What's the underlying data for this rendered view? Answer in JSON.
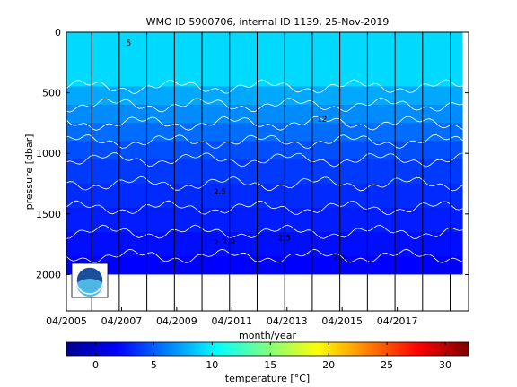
{
  "chart_data": {
    "type": "heatmap",
    "title": "WMO ID 5900706, internal ID 1139, 25-Nov-2019",
    "xlabel": "month/year",
    "ylabel": "pressure [dbar]",
    "x_ticks": [
      "04/2005",
      "04/2007",
      "04/2009",
      "04/2011",
      "04/2013",
      "04/2015",
      "04/2017"
    ],
    "y_ticks": [
      "0",
      "500",
      "1000",
      "1500",
      "2000"
    ],
    "y_tick_values": [
      0,
      500,
      1000,
      1500,
      2000
    ],
    "xlim": [
      "2005-04",
      "2019-11"
    ],
    "ylim_dbar": [
      0,
      2300
    ],
    "y_reversed": true,
    "colorbar": {
      "label": "temperature [°C]",
      "ticks": [
        "0",
        "5",
        "10",
        "15",
        "20",
        "25",
        "30"
      ],
      "tick_values": [
        0,
        5,
        10,
        15,
        20,
        25,
        30
      ],
      "range": [
        -2.5,
        32
      ]
    },
    "profile_months": [
      "2005-04",
      "2006-03",
      "2007-03",
      "2008-03",
      "2009-03",
      "2010-03",
      "2011-03",
      "2012-03",
      "2013-03",
      "2014-03",
      "2015-03",
      "2016-03",
      "2017-03",
      "2018-03",
      "2019-03"
    ],
    "max_pressure_dbar": 2000,
    "isotherms": [
      {
        "temp": 2,
        "depth_dbar": 1850
      },
      {
        "temp": 2.5,
        "depth_dbar": 1650
      },
      {
        "temp": 3,
        "depth_dbar": 1450
      },
      {
        "temp": 3.5,
        "depth_dbar": 1250
      },
      {
        "temp": 4,
        "depth_dbar": 1050
      },
      {
        "temp": 5,
        "depth_dbar": 900
      },
      {
        "temp": 6,
        "depth_dbar": 750
      },
      {
        "temp": 7,
        "depth_dbar": 600
      },
      {
        "temp": 8,
        "depth_dbar": 450
      }
    ],
    "contour_labels": [
      {
        "text": "2",
        "x": "2010-08",
        "y": 1760
      },
      {
        "text": "1.5",
        "x": "2010-12",
        "y": 1740
      },
      {
        "text": "2.5",
        "x": "2010-08",
        "y": 1340
      },
      {
        "text": "2.5",
        "x": "2012-12",
        "y": 1720
      },
      {
        "text": "2.5",
        "x": "2014-12",
        "y": 1880
      },
      {
        "text": "12",
        "x": "2014-05",
        "y": 740
      },
      {
        "text": "5",
        "x": "2007-06",
        "y": 110
      }
    ],
    "legend_logo": "noaa-logo"
  }
}
